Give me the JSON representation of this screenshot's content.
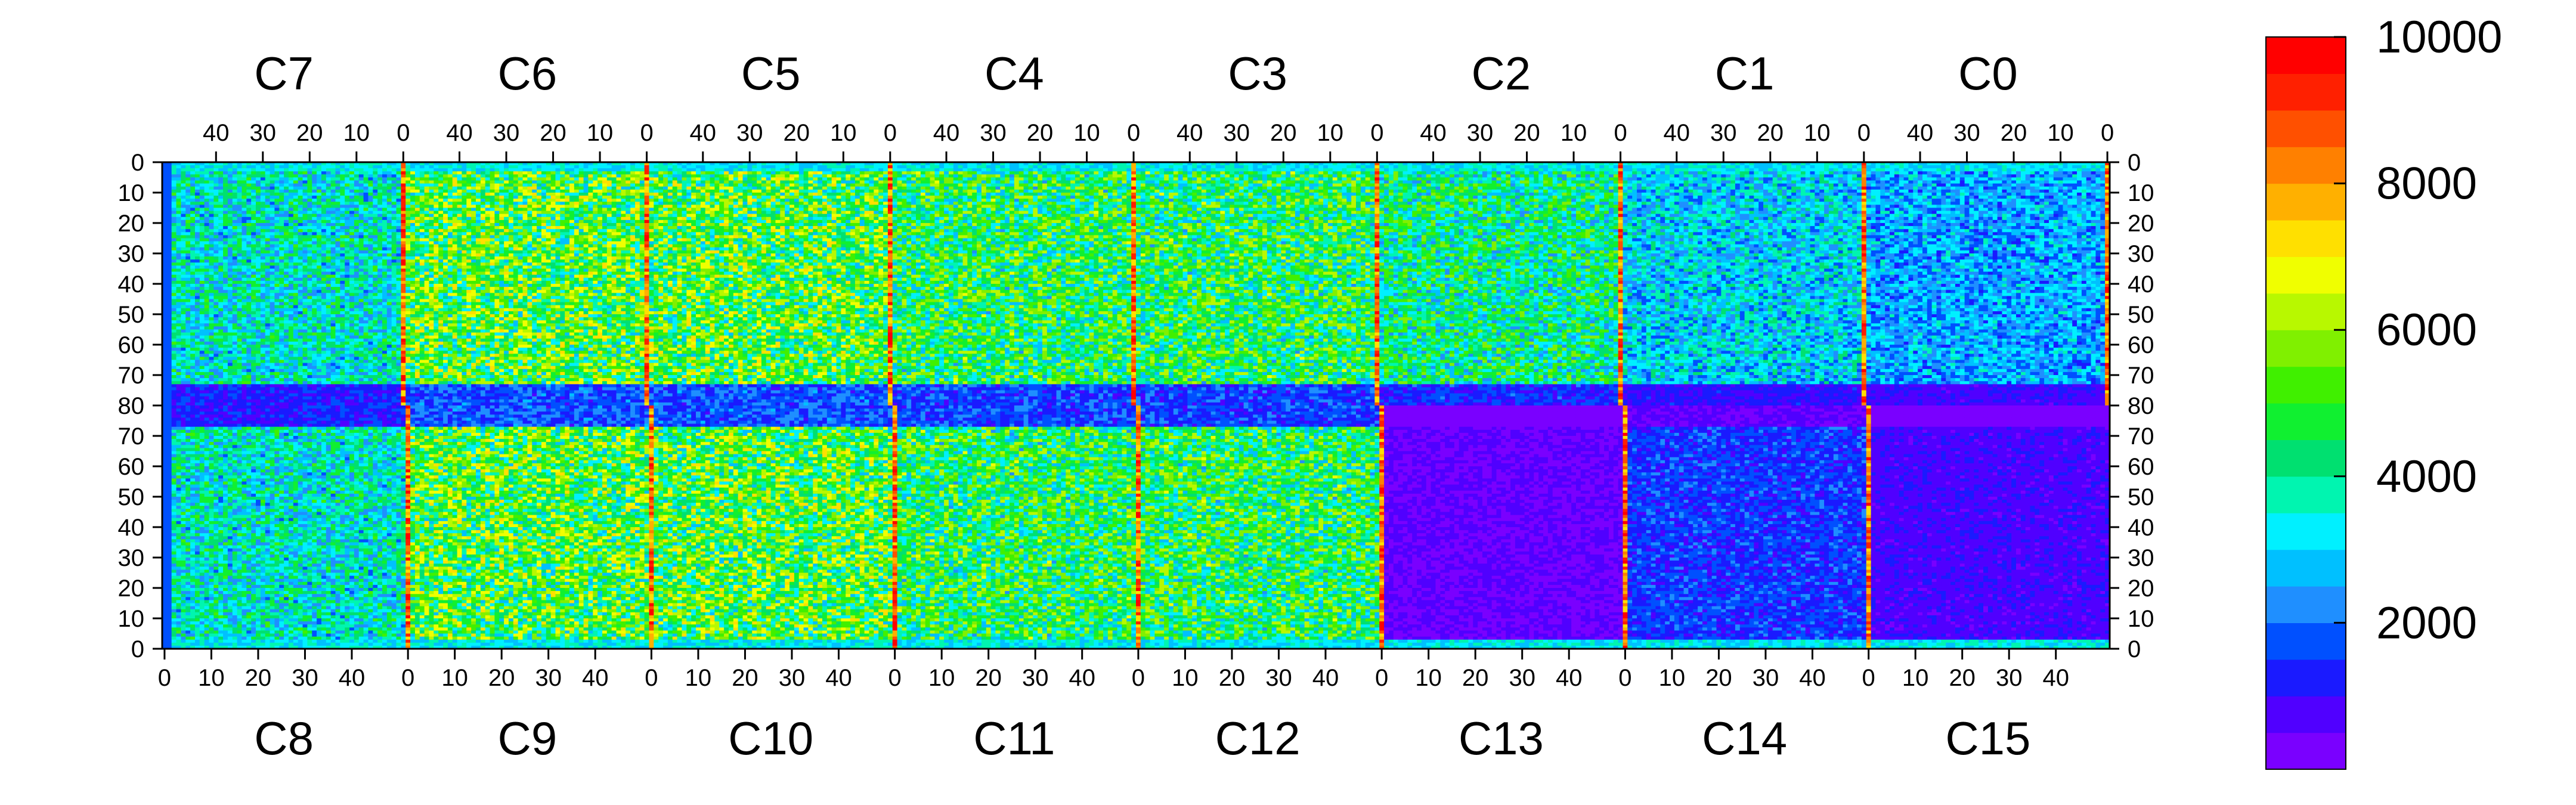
{
  "chart_data": {
    "type": "heatmap",
    "title": "",
    "xlabel": "",
    "ylabel": "",
    "top_chips": [
      "C7",
      "C6",
      "C5",
      "C4",
      "C3",
      "C2",
      "C1",
      "C0"
    ],
    "bottom_chips": [
      "C8",
      "C9",
      "C10",
      "C11",
      "C12",
      "C13",
      "C14",
      "C15"
    ],
    "top_x_ticks": [
      "40",
      "30",
      "20",
      "10",
      "0"
    ],
    "bottom_x_ticks": [
      "0",
      "10",
      "20",
      "30",
      "40"
    ],
    "upper_y_ticks": [
      "0",
      "10",
      "20",
      "30",
      "40",
      "50",
      "60",
      "70",
      "80"
    ],
    "lower_y_ticks": [
      "70",
      "60",
      "50",
      "40",
      "30",
      "20",
      "10",
      "0"
    ],
    "columns_per_chip": 52,
    "rows_per_half": 80,
    "zlim": [
      0,
      10000
    ],
    "colorbar_ticks": [
      "2000",
      "4000",
      "6000",
      "8000",
      "10000"
    ],
    "colormap": [
      "#7a00ff",
      "#5000ff",
      "#1a1aff",
      "#0050ff",
      "#1f8fff",
      "#00c0ff",
      "#00f0ff",
      "#00f5b0",
      "#00e070",
      "#10f030",
      "#40f000",
      "#80f000",
      "#b8f800",
      "#f0ff00",
      "#ffe000",
      "#ffb000",
      "#ff8000",
      "#ff5000",
      "#ff2000",
      "#ff0000"
    ],
    "chip_mean_counts": {
      "C7": 3500,
      "C6": 5000,
      "C5": 5000,
      "C4": 4500,
      "C3": 4500,
      "C2": 4000,
      "C1": 3000,
      "C0": 2500,
      "C8": 3500,
      "C9": 5000,
      "C10": 5000,
      "C11": 4500,
      "C12": 4500,
      "C13": 500,
      "C14": 1500,
      "C15": 800
    }
  }
}
